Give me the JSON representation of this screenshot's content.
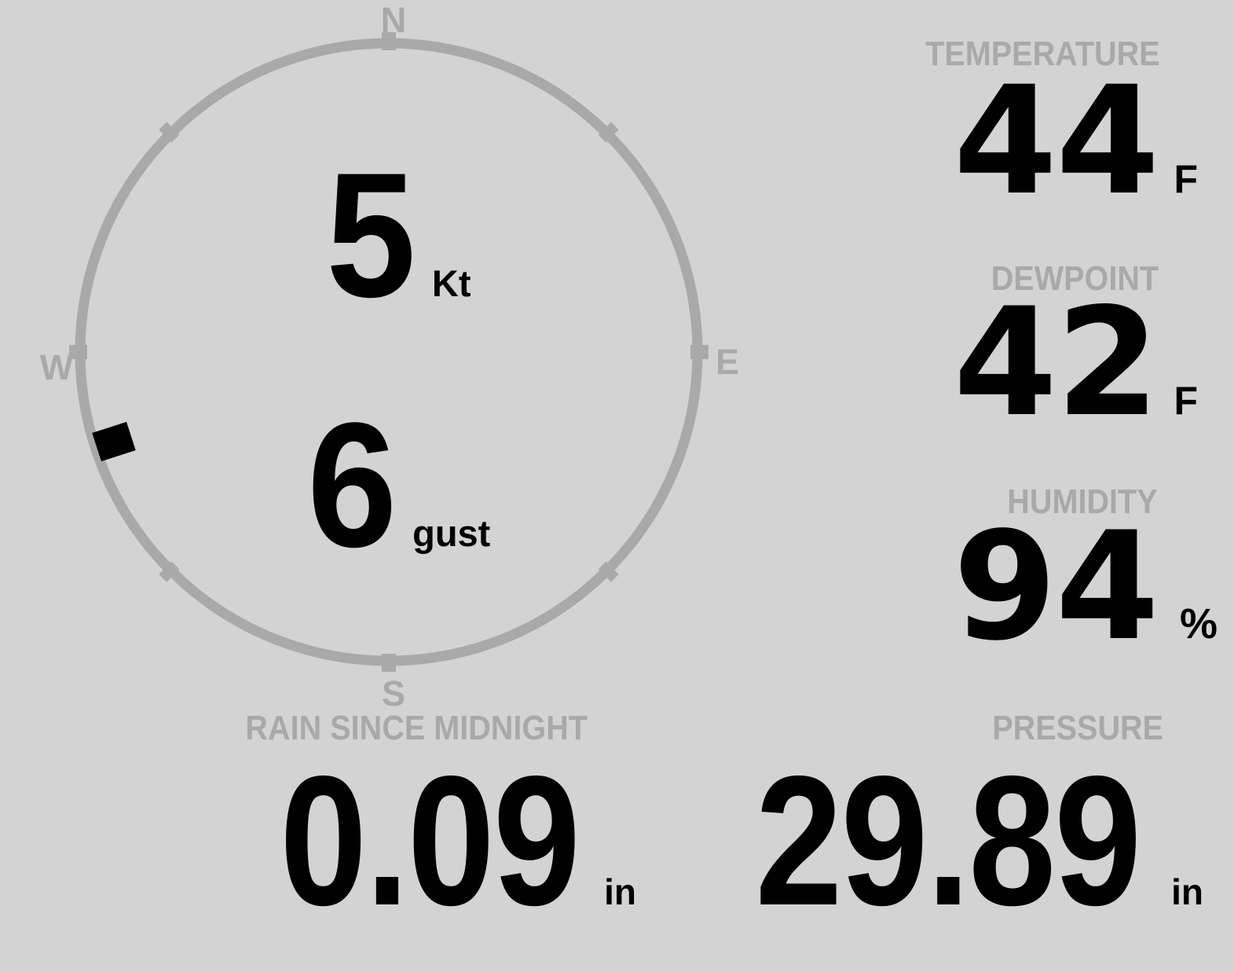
{
  "display": {
    "background": "#d3d3d3",
    "muted": "#a9a9a9",
    "ink": "#000000"
  },
  "wind": {
    "speed": "5",
    "speed_unit": "Kt",
    "gust": "6",
    "gust_unit": "gust",
    "direction_deg": 252,
    "compass_labels": {
      "n": "N",
      "e": "E",
      "s": "S",
      "w": "W"
    }
  },
  "metrics": {
    "temperature": {
      "label": "TEMPERATURE",
      "value": "44",
      "unit": "F"
    },
    "dewpoint": {
      "label": "DEWPOINT",
      "value": "42",
      "unit": "F"
    },
    "humidity": {
      "label": "HUMIDITY",
      "value": "94",
      "unit": "%"
    },
    "rain": {
      "label": "RAIN SINCE MIDNIGHT",
      "value": "0.09",
      "unit": "in"
    },
    "pressure": {
      "label": "PRESSURE",
      "value": "29.89",
      "unit": "in"
    }
  }
}
